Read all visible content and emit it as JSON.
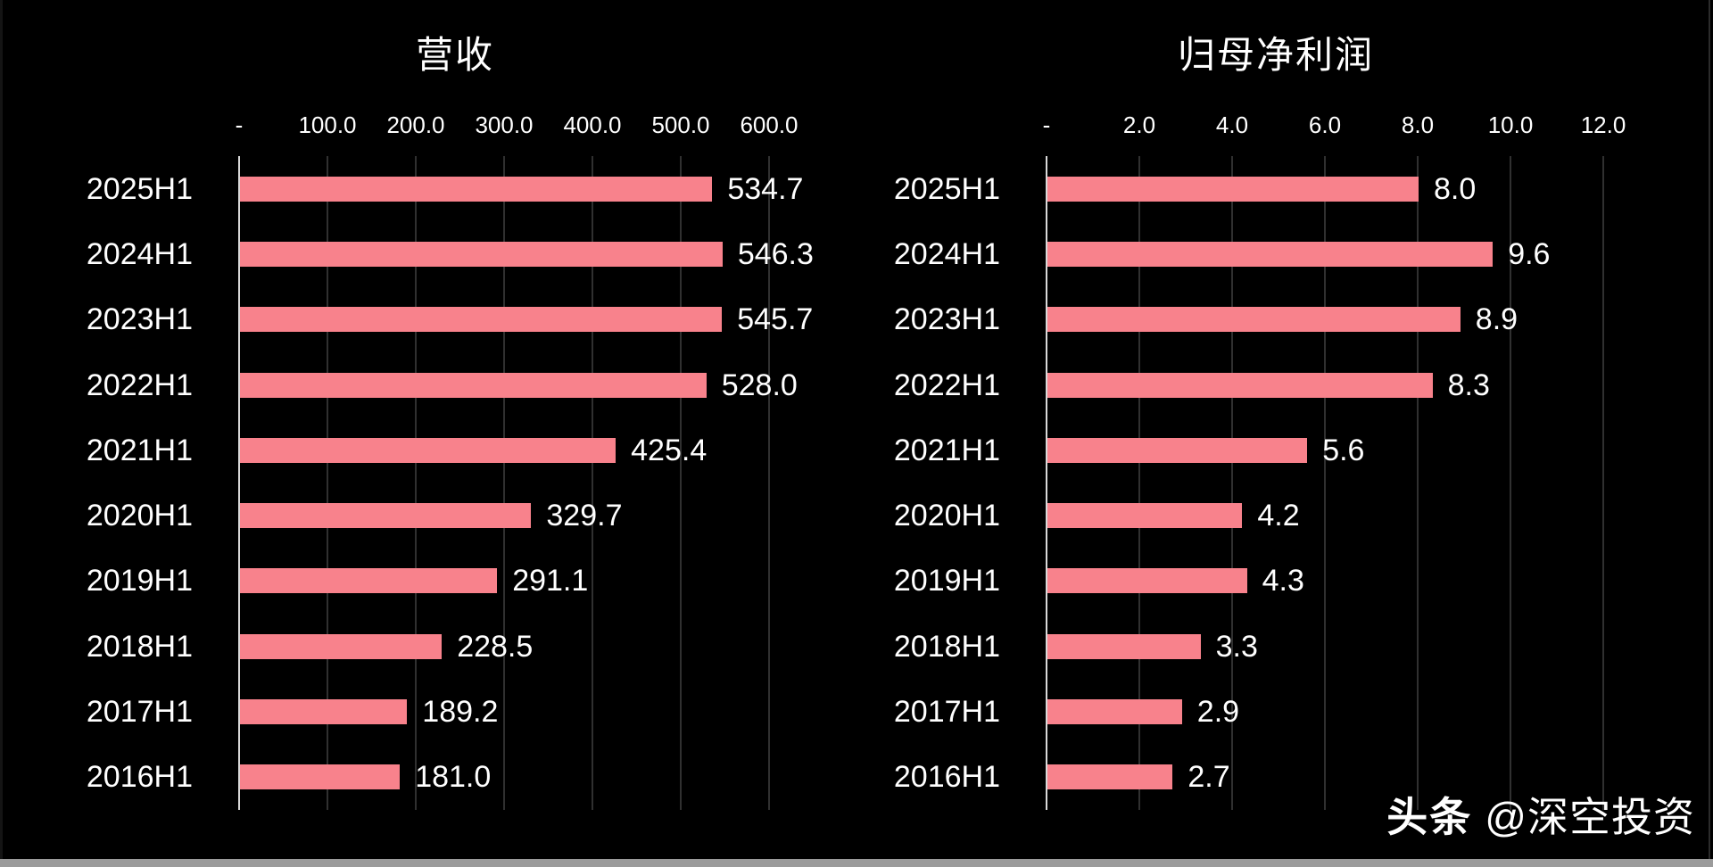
{
  "colors": {
    "background": "#000000",
    "bar": "#F8828C",
    "axis_line": "#D9D9D9",
    "gridline": "#303030",
    "text": "#FFFFFF",
    "edge_strip": "#9B9B9B"
  },
  "chart_data": [
    {
      "type": "bar",
      "orientation": "horizontal",
      "title": "营收",
      "categories": [
        "2025H1",
        "2024H1",
        "2023H1",
        "2022H1",
        "2021H1",
        "2020H1",
        "2019H1",
        "2018H1",
        "2017H1",
        "2016H1"
      ],
      "values": [
        534.7,
        546.3,
        545.7,
        528.0,
        425.4,
        329.7,
        291.1,
        228.5,
        189.2,
        181.0
      ],
      "value_labels": [
        "534.7",
        "546.3",
        "545.7",
        "528.0",
        "425.4",
        "329.7",
        "291.1",
        "228.5",
        "189.2",
        "181.0"
      ],
      "xlim": [
        0,
        600
      ],
      "tick_values": [
        0,
        100,
        200,
        300,
        400,
        500,
        600
      ],
      "tick_labels": [
        "-",
        "100.0",
        "200.0",
        "300.0",
        "400.0",
        "500.0",
        "600.0"
      ],
      "grid": true,
      "legend": "none"
    },
    {
      "type": "bar",
      "orientation": "horizontal",
      "title": "归母净利润",
      "categories": [
        "2025H1",
        "2024H1",
        "2023H1",
        "2022H1",
        "2021H1",
        "2020H1",
        "2019H1",
        "2018H1",
        "2017H1",
        "2016H1"
      ],
      "values": [
        8.0,
        9.6,
        8.9,
        8.3,
        5.6,
        4.2,
        4.3,
        3.3,
        2.9,
        2.7
      ],
      "value_labels": [
        "8.0",
        "9.6",
        "8.9",
        "8.3",
        "5.6",
        "4.2",
        "4.3",
        "3.3",
        "2.9",
        "2.7"
      ],
      "xlim": [
        0,
        12
      ],
      "tick_values": [
        0,
        2,
        4,
        6,
        8,
        10,
        12
      ],
      "tick_labels": [
        "-",
        "2.0",
        "4.0",
        "6.0",
        "8.0",
        "10.0",
        "12.0"
      ],
      "grid": true,
      "legend": "none"
    }
  ],
  "watermark": {
    "brand": "头条",
    "handle": "@深空投资"
  }
}
